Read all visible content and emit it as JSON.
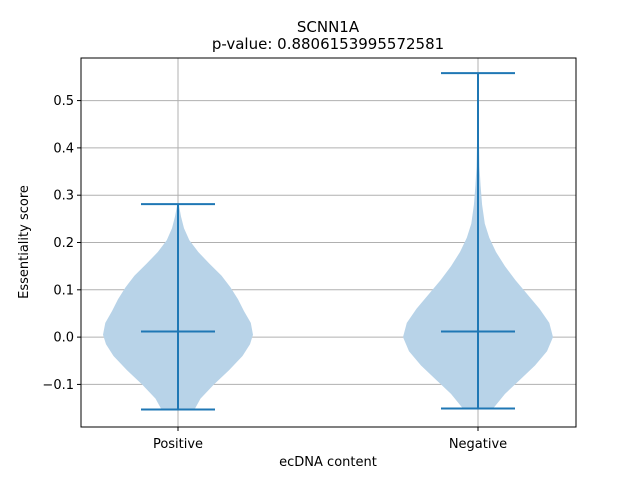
{
  "chart_data": {
    "type": "violin",
    "title": "SCNN1A",
    "subtitle": "p-value: 0.8806153995572581",
    "xlabel": "ecDNA content",
    "ylabel": "Essentiality score",
    "categories": [
      "Positive",
      "Negative"
    ],
    "ylim": [
      -0.19,
      0.59
    ],
    "yticks": [
      -0.1,
      0.0,
      0.1,
      0.2,
      0.3,
      0.4,
      0.5
    ],
    "ytick_labels": [
      "−0.1",
      "0.0",
      "0.1",
      "0.2",
      "0.3",
      "0.4",
      "0.5"
    ],
    "grid": true,
    "colors": {
      "fill": "#b8d3e8",
      "line": "#1f77b4",
      "grid": "#b0b0b0"
    },
    "series": [
      {
        "category": "Positive",
        "min": -0.153,
        "median": 0.012,
        "max": 0.281,
        "density": [
          [
            -0.153,
            0.22
          ],
          [
            -0.13,
            0.3
          ],
          [
            -0.1,
            0.48
          ],
          [
            -0.07,
            0.68
          ],
          [
            -0.04,
            0.86
          ],
          [
            -0.015,
            0.96
          ],
          [
            0.005,
            1.0
          ],
          [
            0.03,
            0.97
          ],
          [
            0.055,
            0.88
          ],
          [
            0.08,
            0.8
          ],
          [
            0.105,
            0.7
          ],
          [
            0.13,
            0.58
          ],
          [
            0.155,
            0.42
          ],
          [
            0.18,
            0.27
          ],
          [
            0.205,
            0.15
          ],
          [
            0.23,
            0.08
          ],
          [
            0.255,
            0.04
          ],
          [
            0.281,
            0.01
          ]
        ]
      },
      {
        "category": "Negative",
        "min": -0.151,
        "median": 0.012,
        "max": 0.558,
        "density": [
          [
            -0.151,
            0.2
          ],
          [
            -0.12,
            0.36
          ],
          [
            -0.09,
            0.56
          ],
          [
            -0.06,
            0.76
          ],
          [
            -0.03,
            0.92
          ],
          [
            0.0,
            1.0
          ],
          [
            0.03,
            0.95
          ],
          [
            0.06,
            0.82
          ],
          [
            0.09,
            0.66
          ],
          [
            0.12,
            0.5
          ],
          [
            0.15,
            0.36
          ],
          [
            0.18,
            0.24
          ],
          [
            0.21,
            0.15
          ],
          [
            0.24,
            0.09
          ],
          [
            0.28,
            0.055
          ],
          [
            0.32,
            0.035
          ],
          [
            0.36,
            0.02
          ],
          [
            0.42,
            0.012
          ],
          [
            0.48,
            0.008
          ],
          [
            0.53,
            0.005
          ],
          [
            0.558,
            0.003
          ]
        ]
      }
    ]
  }
}
